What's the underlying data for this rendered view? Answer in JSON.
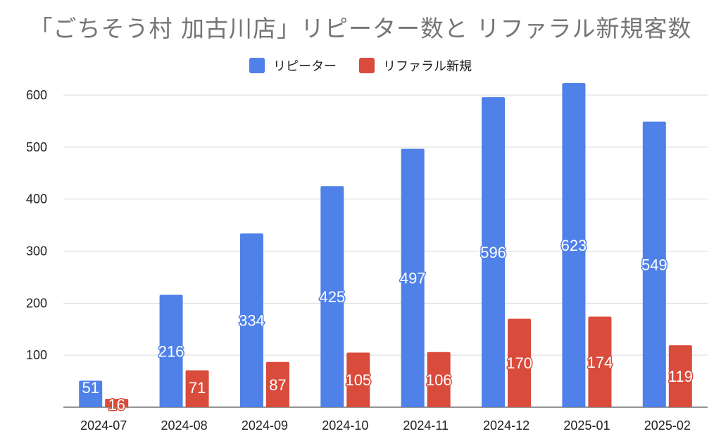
{
  "chart_data": {
    "type": "bar",
    "title": "「ごちそう村 加古川店」リピーター数と リファラル新規客数",
    "xlabel": "",
    "ylabel": "",
    "categories": [
      "2024-07",
      "2024-08",
      "2024-09",
      "2024-10",
      "2024-11",
      "2024-12",
      "2025-01",
      "2025-02"
    ],
    "series": [
      {
        "name": "リピーター",
        "color": "#4f81e8",
        "values": [
          51,
          216,
          334,
          425,
          497,
          596,
          623,
          549
        ]
      },
      {
        "name": "リファラル新規",
        "color": "#d94b3b",
        "values": [
          16,
          71,
          87,
          105,
          106,
          170,
          174,
          119
        ]
      }
    ],
    "ylim": [
      0,
      600
    ],
    "yticks": [
      100,
      200,
      300,
      400,
      500,
      600
    ],
    "grid": true,
    "legend_position": "top"
  }
}
